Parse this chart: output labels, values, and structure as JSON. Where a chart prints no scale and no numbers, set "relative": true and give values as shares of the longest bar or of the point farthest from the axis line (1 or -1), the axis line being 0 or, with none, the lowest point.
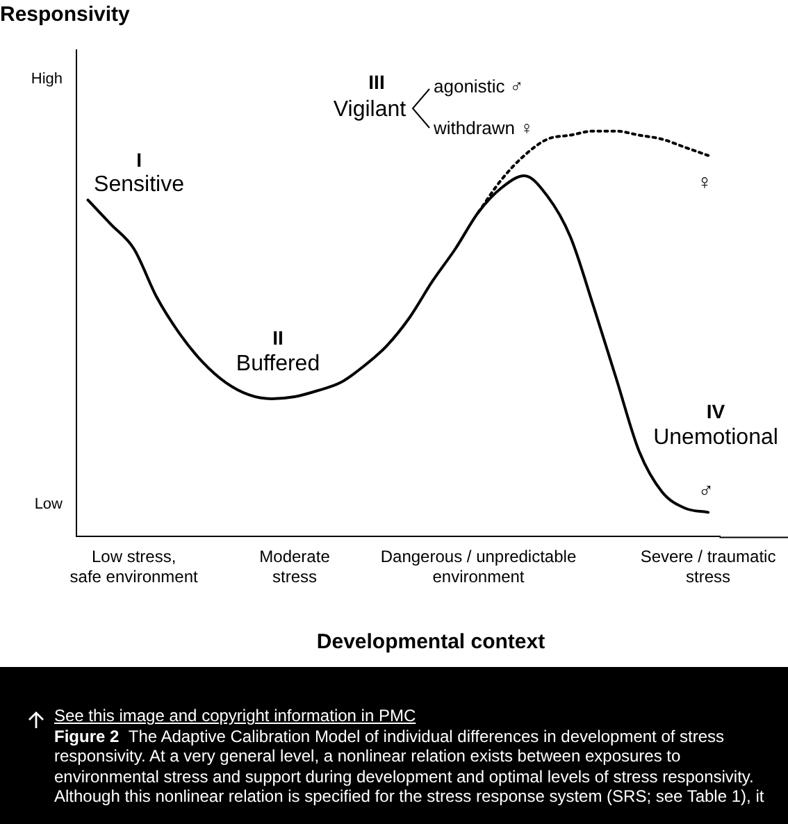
{
  "chart_data": {
    "type": "line",
    "relative": true,
    "xlabel": "Developmental context",
    "categories": [
      null,
      null,
      "Low stress,\nsafe environment",
      null,
      null,
      null,
      null,
      null,
      null,
      "Moderate\nstress",
      null,
      null,
      null,
      null,
      null,
      null,
      null,
      "Dangerous / unpredictable\nenvironment",
      null,
      null,
      null,
      null,
      null,
      null,
      null,
      null,
      null,
      "Severe / traumatic\nstress"
    ],
    "grid": false,
    "legend": false,
    "marker": "none",
    "series": [
      {
        "color": "#000000",
        "line_style": "solid",
        "values": [
          0.83,
          0.77,
          0.71,
          0.59,
          0.5,
          0.43,
          0.38,
          0.35,
          0.34,
          0.345,
          0.36,
          0.38,
          0.42,
          0.47,
          0.54,
          0.63,
          0.71,
          0.8,
          0.86,
          0.89,
          0.84,
          0.74,
          0.57,
          0.39,
          0.21,
          0.11,
          0.07,
          0.06
        ]
      },
      {
        "color": "#000000",
        "line_style": "dotted",
        "values": [
          null,
          null,
          null,
          null,
          null,
          null,
          null,
          null,
          null,
          null,
          null,
          null,
          null,
          null,
          null,
          null,
          null,
          0.8,
          0.88,
          0.94,
          0.98,
          0.99,
          1,
          1,
          0.99,
          0.98,
          0.96,
          0.94
        ]
      }
    ],
    "annotations": [
      "High",
      "Low",
      "I",
      "Sensitive",
      "II",
      "Buffered",
      "III",
      "Vigilant",
      "agonistic ♂",
      "withdrawn ♀",
      "♀",
      "IV",
      "Unemotional",
      "♂",
      "See this image and copyright information in PMC",
      "Figure 2",
      "The Adaptive Calibration Model of individual differences in development of stress responsivity. At a very general level, a nonlinear relation exists between exposures to environmental stress and support during development and optimal levels of stress responsivity. Although this nonlinear relation is specified for the stress response system (SRS; see Table 1), it",
      "Responsivity"
    ]
  }
}
